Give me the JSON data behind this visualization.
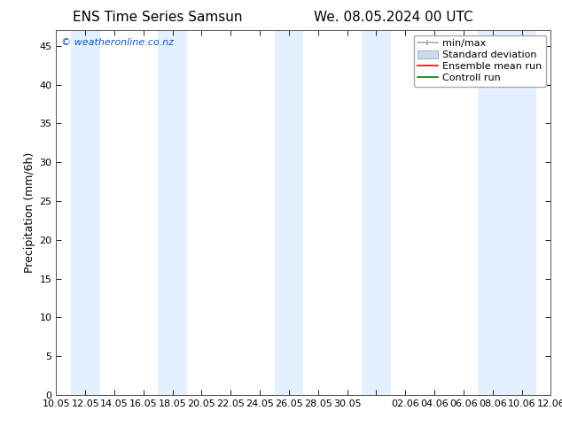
{
  "title_left": "ENS Time Series Samsun",
  "title_right": "We. 08.05.2024 00 UTC",
  "ylabel": "Precipitation (mm/6h)",
  "ylim": [
    0,
    47
  ],
  "yticks": [
    0,
    5,
    10,
    15,
    20,
    25,
    30,
    35,
    40,
    45
  ],
  "background_color": "#ffffff",
  "shade_color": "#ddeeff",
  "shade_alpha": 0.85,
  "shade_bands": [
    [
      1,
      3
    ],
    [
      7,
      9
    ],
    [
      15,
      17
    ],
    [
      21,
      23
    ],
    [
      29,
      31
    ],
    [
      31,
      33
    ]
  ],
  "xtick_positions": [
    0,
    2,
    4,
    6,
    8,
    10,
    12,
    14,
    16,
    18,
    20,
    22,
    24,
    26,
    28,
    30,
    32,
    34
  ],
  "xtick_labels": [
    "10.05",
    "12.05",
    "14.05",
    "16.05",
    "18.05",
    "20.05",
    "22.05",
    "24.05",
    "26.05",
    "28.05",
    "30.05",
    "",
    "02.06",
    "04.06",
    "06.06",
    "08.06",
    "10.06",
    "12.06"
  ],
  "minmax_color": "#aaaaaa",
  "std_fill_color": "#c8ddf0",
  "std_edge_color": "#aaaaaa",
  "mean_color": "#ff0000",
  "control_color": "#008000",
  "watermark": "© weatheronline.co.nz",
  "watermark_color": "#1155cc",
  "legend_labels": [
    "min/max",
    "Standard deviation",
    "Ensemble mean run",
    "Controll run"
  ],
  "tick_fontsize": 8,
  "ylabel_fontsize": 9,
  "title_fontsize": 11,
  "watermark_fontsize": 8,
  "legend_fontsize": 8
}
